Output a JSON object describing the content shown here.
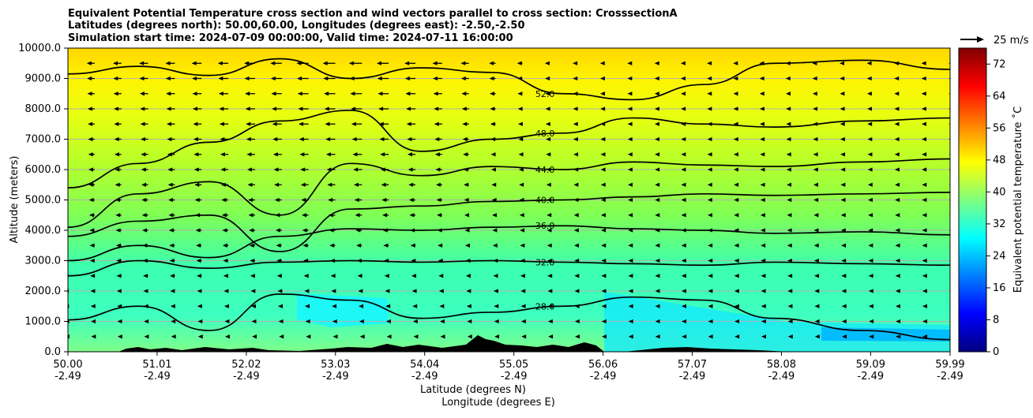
{
  "chart_data": {
    "type": "heatmap",
    "title_lines": [
      "Equivalent Potential Temperature cross section and wind vectors parallel to cross section: CrosssectionA",
      "Latitudes (degrees north): 50.00,60.00, Longitudes (degrees east): -2.50,-2.50",
      "Simulation start time: 2024-07-09 00:00:00, Valid time: 2024-07-11 16:00:00"
    ],
    "ylabel": "Altitude (meters)",
    "xlabel_line1": "Latitude (degrees N)",
    "xlabel_line2": "Longitude (degrees E)",
    "xlim": [
      50.0,
      59.99
    ],
    "ylim": [
      0,
      10000
    ],
    "grid": true,
    "yticks": [
      "0.0",
      "1000.0",
      "2000.0",
      "3000.0",
      "4000.0",
      "5000.0",
      "6000.0",
      "7000.0",
      "8000.0",
      "9000.0",
      "10000.0"
    ],
    "xticks": [
      {
        "lat": "50.00",
        "lon": "-2.49"
      },
      {
        "lat": "51.01",
        "lon": "-2.49"
      },
      {
        "lat": "52.02",
        "lon": "-2.49"
      },
      {
        "lat": "53.03",
        "lon": "-2.49"
      },
      {
        "lat": "54.04",
        "lon": "-2.49"
      },
      {
        "lat": "55.05",
        "lon": "-2.49"
      },
      {
        "lat": "56.06",
        "lon": "-2.49"
      },
      {
        "lat": "57.07",
        "lon": "-2.49"
      },
      {
        "lat": "58.08",
        "lon": "-2.49"
      },
      {
        "lat": "59.09",
        "lon": "-2.49"
      },
      {
        "lat": "59.99",
        "lon": "-2.49"
      }
    ],
    "colorbar": {
      "label": "Equivalent potential temperature ˚C",
      "range": [
        0,
        76
      ],
      "ticks": [
        "0",
        "8",
        "16",
        "24",
        "32",
        "40",
        "48",
        "56",
        "64",
        "72"
      ],
      "colors": [
        "#00007f",
        "#0000ff",
        "#007fff",
        "#00ffff",
        "#7fff7f",
        "#ffff00",
        "#ff7f00",
        "#ff0000",
        "#7f0000"
      ]
    },
    "quiver_key": {
      "label": "25 m/s",
      "speed": 25
    },
    "contours": [
      {
        "level": 52.0,
        "label": "52.0",
        "y": [
          9150,
          9400,
          9100,
          9650,
          9000,
          9350,
          9200,
          8500,
          8300,
          8800,
          9500,
          9600,
          9300
        ]
      },
      {
        "level": 48.0,
        "label": "48.0",
        "y": [
          5400,
          6200,
          6900,
          7600,
          7950,
          6600,
          7000,
          7200,
          7700,
          7500,
          7400,
          7600,
          7700
        ]
      },
      {
        "level": 44.0,
        "label": "44.0",
        "y": [
          4100,
          5200,
          5600,
          4500,
          6200,
          5800,
          6100,
          6000,
          6250,
          6150,
          6100,
          6250,
          6350
        ]
      },
      {
        "level": 40.0,
        "label": "40.0",
        "y": [
          3800,
          4300,
          4500,
          3300,
          4700,
          4800,
          4950,
          5000,
          5100,
          5200,
          5150,
          5200,
          5250
        ]
      },
      {
        "level": 36.0,
        "label": "36.0",
        "y": [
          3000,
          3500,
          3100,
          3800,
          4050,
          4000,
          4100,
          4150,
          4050,
          4000,
          3900,
          3950,
          3850
        ]
      },
      {
        "level": 32.0,
        "label": "32.0",
        "y": [
          2500,
          3000,
          2750,
          2950,
          3000,
          2950,
          3000,
          2950,
          2900,
          2850,
          2950,
          2900,
          2850
        ]
      },
      {
        "level": 28.0,
        "label": "28.0",
        "y": [
          1050,
          1500,
          700,
          1900,
          1700,
          1100,
          1300,
          1500,
          1800,
          1700,
          1100,
          700,
          400
        ]
      }
    ],
    "contour_x": [
      50.0,
      50.8,
      51.6,
      52.4,
      53.2,
      54.0,
      54.8,
      55.6,
      56.4,
      57.2,
      58.0,
      59.0,
      59.99
    ],
    "wind_u_upper": [
      -10,
      -12,
      -14,
      -16,
      -18,
      -14,
      -8,
      -4,
      -2,
      -4,
      -6,
      -4,
      -2
    ],
    "wind_u_lower": [
      -4,
      -5,
      -4,
      -3,
      -2,
      -2,
      -1,
      -1,
      -1,
      -2,
      -2,
      -1,
      -1
    ]
  }
}
